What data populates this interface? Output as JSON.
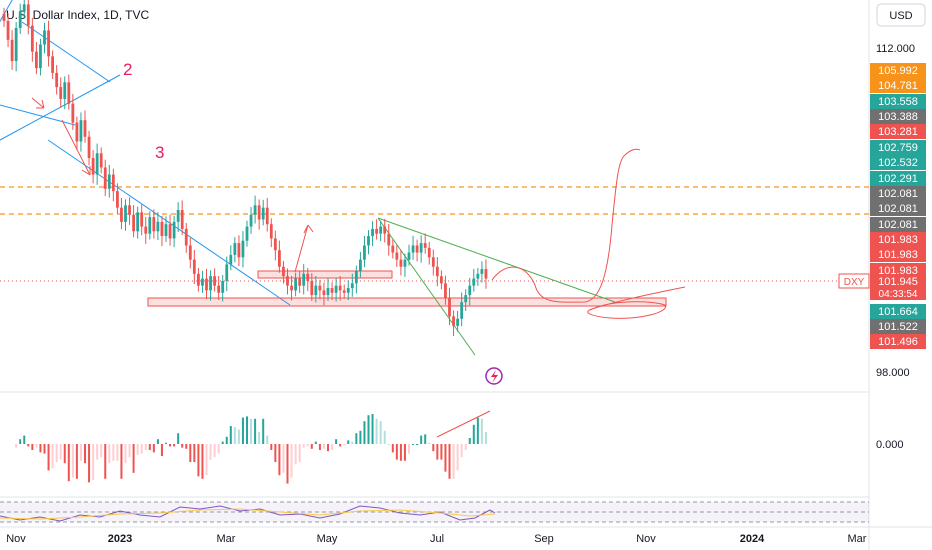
{
  "header": {
    "title": "U.S. Dollar Index, 1D, TVC"
  },
  "currency_button": {
    "label": "USD"
  },
  "symbol_tag": {
    "label": "DXY"
  },
  "countdown": "04:33:54",
  "annotations": {
    "wave2": "2",
    "wave3": "3"
  },
  "colors": {
    "up": "#26a69a",
    "down": "#ef5350",
    "orange": "#f7931a",
    "blue": "#2196f3",
    "green_line": "#4caf50",
    "grey_tag": "#707070",
    "pink": "#e91e63"
  },
  "chart_data": [
    {
      "type": "candlestick",
      "title": "U.S. Dollar Index, 1D, TVC",
      "x_ticks": [
        "Nov",
        "2023",
        "Mar",
        "May",
        "Jul",
        "Sep",
        "Nov",
        "2024",
        "Mar"
      ],
      "y_ticks": [
        112.0,
        98.0
      ],
      "y_tick_labels": [
        "112.000",
        "98.000"
      ],
      "ylim": [
        97.1,
        113.6
      ],
      "last_value": 101.945,
      "price_tags": [
        {
          "value": "105.992",
          "color": "orange"
        },
        {
          "value": "104.781",
          "color": "orange"
        },
        {
          "value": "103.558",
          "color": "up"
        },
        {
          "value": "103.388",
          "color": "grey"
        },
        {
          "value": "103.281",
          "color": "down"
        },
        {
          "value": "102.759",
          "color": "up"
        },
        {
          "value": "102.532",
          "color": "up"
        },
        {
          "value": "102.291",
          "color": "up"
        },
        {
          "value": "102.081",
          "color": "grey"
        },
        {
          "value": "102.081",
          "color": "grey"
        },
        {
          "value": "102.081",
          "color": "grey"
        },
        {
          "value": "101.983",
          "color": "down"
        },
        {
          "value": "101.983",
          "color": "down"
        },
        {
          "value": "101.983",
          "color": "down"
        },
        {
          "value": "101.945",
          "color": "down"
        },
        {
          "value": "101.664",
          "color": "up"
        },
        {
          "value": "101.522",
          "color": "grey"
        },
        {
          "value": "101.496",
          "color": "down"
        }
      ],
      "horizontal_levels": [
        105.0,
        104.2
      ],
      "approx_closes": [
        112.8,
        112.0,
        111.1,
        112.5,
        113.2,
        113.5,
        112.6,
        111.5,
        110.8,
        111.8,
        112.4,
        111.3,
        110.6,
        110.0,
        109.5,
        110.2,
        109.3,
        108.5,
        107.7,
        108.6,
        107.9,
        107.0,
        106.3,
        107.2,
        106.6,
        105.7,
        106.3,
        105.6,
        104.9,
        104.3,
        105.0,
        104.6,
        103.9,
        104.7,
        104.1,
        103.8,
        104.5,
        103.9,
        104.3,
        103.7,
        104.2,
        103.6,
        104.3,
        104.8,
        104.0,
        103.3,
        102.7,
        102.1,
        101.6,
        101.9,
        101.4,
        102.0,
        101.6,
        101.3,
        101.8,
        102.5,
        102.9,
        103.4,
        102.8,
        103.5,
        104.1,
        104.6,
        105.0,
        104.4,
        104.9,
        104.2,
        103.6,
        103.1,
        102.4,
        102.0,
        101.6,
        101.4,
        101.9,
        101.6,
        102.1,
        101.8,
        101.2,
        101.6,
        101.4,
        101.2,
        101.5,
        101.3,
        101.6,
        101.4,
        101.3,
        101.5,
        101.7,
        102.2,
        102.7,
        103.3,
        103.7,
        104.0,
        103.8,
        104.1,
        103.8,
        103.3,
        103.0,
        102.7,
        102.4,
        102.7,
        103.0,
        103.3,
        103.0,
        103.4,
        103.2,
        102.8,
        102.4,
        102.0,
        101.7,
        101.1,
        100.3,
        99.9,
        100.2,
        100.9,
        101.2,
        101.6,
        101.9,
        102.1,
        102.3,
        101.9
      ],
      "projection": "rally from ~101.8 to ~106.5 then consolidation near 101.5"
    },
    {
      "type": "histogram",
      "name": "MACD histogram",
      "y_ticks": [
        0.0
      ],
      "y_tick_labels": [
        "0.000"
      ]
    },
    {
      "type": "line",
      "name": "RSI",
      "bands": [
        70,
        50,
        30
      ]
    }
  ]
}
